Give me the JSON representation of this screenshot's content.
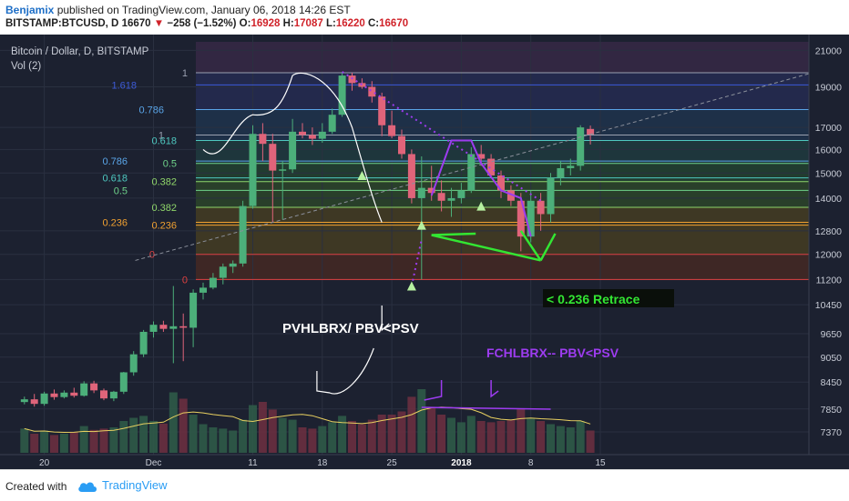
{
  "header": {
    "author": "Benjamix",
    "published_text": "published on TradingView.com, January 06, 2018 14:26 EST",
    "symbol": "BITSTAMP:BTCUSD, D",
    "last": "16670",
    "change": "−258 (−1.52%)",
    "o_label": "O:",
    "o_value": "16928",
    "h_label": "H:",
    "h_value": "17087",
    "l_label": "L:",
    "l_value": "16220",
    "c_label": "C:",
    "c_value": "16670"
  },
  "footer": {
    "created_with": "Created with",
    "brand": "TradingView"
  },
  "colors": {
    "up": "#4caf7a",
    "down": "#e0647a",
    "background": "#1c2130",
    "annotation_green": "#33e633",
    "annotation_purple": "#9d3cf0"
  },
  "chart_data": {
    "type": "candlestick",
    "title": "Bitcoin / Dollar, D, BITSTAMP",
    "subtitle": "Vol (2)",
    "y_scale": "log",
    "ylim": [
      7100,
      21500
    ],
    "y_ticks": [
      21000,
      19000,
      17000,
      16000,
      15000,
      14000,
      12800,
      12000,
      11200,
      10450,
      9650,
      9050,
      8450,
      7850,
      7370
    ],
    "x_ticks": [
      {
        "label": "20",
        "day": -12
      },
      {
        "label": "Dec",
        "day": -1
      },
      {
        "label": "11",
        "day": 9
      },
      {
        "label": "18",
        "day": 16
      },
      {
        "label": "25",
        "day": 23
      },
      {
        "label": "2018",
        "day": 30
      },
      {
        "label": "8",
        "day": 37
      },
      {
        "label": "15",
        "day": 44
      }
    ],
    "candles": [
      {
        "o": 8000,
        "h": 8120,
        "l": 7950,
        "c": 8060,
        "v": 38
      },
      {
        "o": 8060,
        "h": 8180,
        "l": 7900,
        "c": 7960,
        "v": 30
      },
      {
        "o": 7960,
        "h": 8230,
        "l": 7920,
        "c": 8190,
        "v": 35
      },
      {
        "o": 8190,
        "h": 8280,
        "l": 8050,
        "c": 8110,
        "v": 28
      },
      {
        "o": 8110,
        "h": 8260,
        "l": 8080,
        "c": 8210,
        "v": 30
      },
      {
        "o": 8210,
        "h": 8320,
        "l": 8100,
        "c": 8140,
        "v": 33
      },
      {
        "o": 8140,
        "h": 8470,
        "l": 8120,
        "c": 8420,
        "v": 42
      },
      {
        "o": 8420,
        "h": 8480,
        "l": 8200,
        "c": 8260,
        "v": 36
      },
      {
        "o": 8260,
        "h": 8300,
        "l": 8040,
        "c": 8080,
        "v": 38
      },
      {
        "o": 8080,
        "h": 8250,
        "l": 8020,
        "c": 8230,
        "v": 40
      },
      {
        "o": 8230,
        "h": 8690,
        "l": 8180,
        "c": 8680,
        "v": 50
      },
      {
        "o": 8680,
        "h": 9200,
        "l": 8600,
        "c": 9120,
        "v": 55
      },
      {
        "o": 9120,
        "h": 9750,
        "l": 9050,
        "c": 9700,
        "v": 58
      },
      {
        "o": 9700,
        "h": 9980,
        "l": 9550,
        "c": 9890,
        "v": 50
      },
      {
        "o": 9890,
        "h": 10000,
        "l": 9700,
        "c": 9780,
        "v": 46
      },
      {
        "o": 9780,
        "h": 11000,
        "l": 8900,
        "c": 9850,
        "v": 95
      },
      {
        "o": 9850,
        "h": 10200,
        "l": 8950,
        "c": 9810,
        "v": 85
      },
      {
        "o": 9810,
        "h": 10900,
        "l": 9300,
        "c": 10800,
        "v": 60
      },
      {
        "o": 10800,
        "h": 11100,
        "l": 10600,
        "c": 10950,
        "v": 45
      },
      {
        "o": 10950,
        "h": 11400,
        "l": 10900,
        "c": 11250,
        "v": 40
      },
      {
        "o": 11250,
        "h": 11700,
        "l": 11050,
        "c": 11600,
        "v": 38
      },
      {
        "o": 11600,
        "h": 11800,
        "l": 11400,
        "c": 11700,
        "v": 35
      },
      {
        "o": 11700,
        "h": 13900,
        "l": 11600,
        "c": 13700,
        "v": 52
      },
      {
        "o": 13700,
        "h": 17100,
        "l": 13600,
        "c": 16700,
        "v": 75
      },
      {
        "o": 16700,
        "h": 17200,
        "l": 15500,
        "c": 16250,
        "v": 80
      },
      {
        "o": 16250,
        "h": 16700,
        "l": 13100,
        "c": 15100,
        "v": 68
      },
      {
        "o": 15100,
        "h": 15500,
        "l": 13200,
        "c": 15150,
        "v": 55
      },
      {
        "o": 15150,
        "h": 17400,
        "l": 15000,
        "c": 16800,
        "v": 52
      },
      {
        "o": 16800,
        "h": 17200,
        "l": 16500,
        "c": 16650,
        "v": 40
      },
      {
        "o": 16650,
        "h": 17000,
        "l": 16200,
        "c": 16480,
        "v": 38
      },
      {
        "o": 16480,
        "h": 17200,
        "l": 16300,
        "c": 16800,
        "v": 42
      },
      {
        "o": 16800,
        "h": 17900,
        "l": 16700,
        "c": 17600,
        "v": 48
      },
      {
        "o": 17600,
        "h": 19800,
        "l": 17500,
        "c": 19600,
        "v": 58
      },
      {
        "o": 19600,
        "h": 19750,
        "l": 18800,
        "c": 19200,
        "v": 50
      },
      {
        "o": 19200,
        "h": 19450,
        "l": 18900,
        "c": 19000,
        "v": 45
      },
      {
        "o": 19000,
        "h": 19300,
        "l": 18200,
        "c": 18500,
        "v": 52
      },
      {
        "o": 18500,
        "h": 18700,
        "l": 16600,
        "c": 17100,
        "v": 60
      },
      {
        "o": 17100,
        "h": 17800,
        "l": 16500,
        "c": 16600,
        "v": 60
      },
      {
        "o": 16600,
        "h": 16900,
        "l": 15600,
        "c": 15800,
        "v": 65
      },
      {
        "o": 15800,
        "h": 16000,
        "l": 13800,
        "c": 14000,
        "v": 88
      },
      {
        "o": 14000,
        "h": 15700,
        "l": 11200,
        "c": 14400,
        "v": 100
      },
      {
        "o": 14400,
        "h": 15300,
        "l": 13900,
        "c": 14200,
        "v": 70
      },
      {
        "o": 14200,
        "h": 14700,
        "l": 13500,
        "c": 13900,
        "v": 60
      },
      {
        "o": 13900,
        "h": 14400,
        "l": 13300,
        "c": 14000,
        "v": 55
      },
      {
        "o": 14000,
        "h": 14600,
        "l": 13800,
        "c": 14300,
        "v": 48
      },
      {
        "o": 14300,
        "h": 16100,
        "l": 14200,
        "c": 15800,
        "v": 58
      },
      {
        "o": 15800,
        "h": 16200,
        "l": 15300,
        "c": 15600,
        "v": 50
      },
      {
        "o": 15600,
        "h": 15800,
        "l": 14800,
        "c": 14900,
        "v": 48
      },
      {
        "o": 14900,
        "h": 15100,
        "l": 14000,
        "c": 14300,
        "v": 50
      },
      {
        "o": 14300,
        "h": 14500,
        "l": 13700,
        "c": 13900,
        "v": 52
      },
      {
        "o": 13900,
        "h": 14200,
        "l": 12100,
        "c": 12600,
        "v": 70
      },
      {
        "o": 12600,
        "h": 14300,
        "l": 12400,
        "c": 13900,
        "v": 55
      },
      {
        "o": 13900,
        "h": 14200,
        "l": 12800,
        "c": 13400,
        "v": 50
      },
      {
        "o": 13400,
        "h": 15000,
        "l": 13100,
        "c": 14800,
        "v": 45
      },
      {
        "o": 14800,
        "h": 15500,
        "l": 14500,
        "c": 15200,
        "v": 42
      },
      {
        "o": 15200,
        "h": 15600,
        "l": 14900,
        "c": 15300,
        "v": 40
      },
      {
        "o": 15300,
        "h": 17100,
        "l": 15100,
        "c": 17000,
        "v": 50
      },
      {
        "o": 16928,
        "h": 17087,
        "l": 16220,
        "c": 16670,
        "v": 35
      }
    ],
    "fibonacci_levels": [
      {
        "label": "1",
        "price": 19750,
        "color": "#9aa0b0"
      },
      {
        "label": "1.618",
        "price": 19100,
        "color": "#3d5bd8"
      },
      {
        "label": "0.786",
        "price": 17850,
        "color": "#5aa5e8"
      },
      {
        "label": "1",
        "price": 16650,
        "color": "#9aa0b0"
      },
      {
        "label": "0.618",
        "price": 16400,
        "color": "#4ec8c0"
      },
      {
        "label": "0.786",
        "price": 15500,
        "color": "#5aa5e8"
      },
      {
        "label": "0.5",
        "price": 15400,
        "color": "#6fd38a"
      },
      {
        "label": "0.618",
        "price": 14800,
        "color": "#4ec8c0"
      },
      {
        "label": "0.382",
        "price": 14650,
        "color": "#8fd66a"
      },
      {
        "label": "0.5",
        "price": 14300,
        "color": "#6fd38a"
      },
      {
        "label": "0.382",
        "price": 13650,
        "color": "#8fd66a"
      },
      {
        "label": "0.236",
        "price": 13100,
        "color": "#f0a030"
      },
      {
        "label": "0.236",
        "price": 13000,
        "color": "#f0a030"
      },
      {
        "label": "0",
        "price": 12000,
        "color": "#e04040"
      },
      {
        "label": "0",
        "price": 11200,
        "color": "#e04040"
      }
    ]
  },
  "annotations": {
    "text1": "PVHLBRX/  PBV<PSV",
    "text2": "FCHLBRX--  PBV<PSV",
    "text3": "< 0.236 Retrace"
  }
}
